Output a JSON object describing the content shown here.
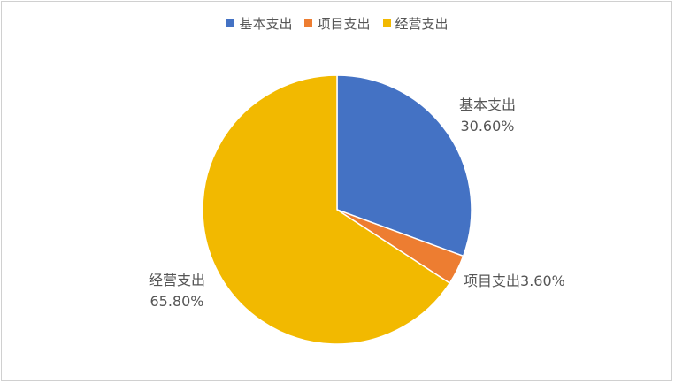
{
  "chart_data": {
    "type": "pie",
    "title": "",
    "legend_position": "top",
    "slices": [
      {
        "name": "基本支出",
        "value": 30.6,
        "label": "30.60%",
        "color": "#4472C4"
      },
      {
        "name": "项目支出",
        "value": 3.6,
        "label": "3.60%",
        "color": "#ED7D31"
      },
      {
        "name": "经营支出",
        "value": 65.8,
        "label": "65.80%",
        "color": "#F2B900"
      }
    ]
  }
}
